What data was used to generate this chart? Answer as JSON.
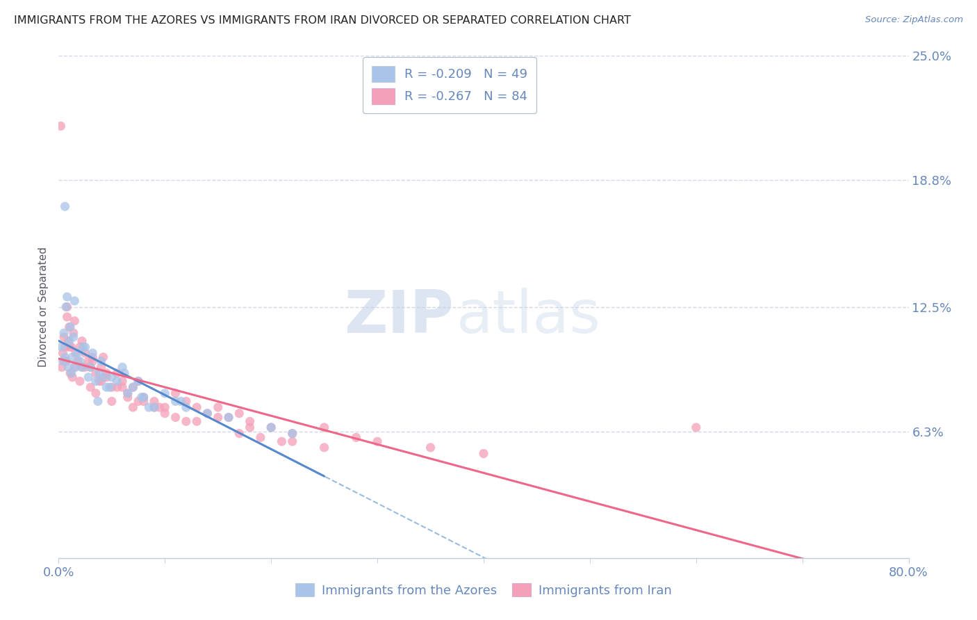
{
  "title": "IMMIGRANTS FROM THE AZORES VS IMMIGRANTS FROM IRAN DIVORCED OR SEPARATED CORRELATION CHART",
  "source": "Source: ZipAtlas.com",
  "xmin": 0.0,
  "xmax": 80.0,
  "ymin": 0.0,
  "ymax": 25.0,
  "yticks": [
    6.3,
    12.5,
    18.8,
    25.0
  ],
  "ytick_labels": [
    "6.3%",
    "12.5%",
    "18.8%",
    "25.0%"
  ],
  "legend_line1": "R = -0.209   N = 49",
  "legend_line2": "R = -0.267   N = 84",
  "azores_color": "#a8c4e8",
  "iran_color": "#f4a0b8",
  "trend_azores_color": "#5588cc",
  "trend_iran_color": "#ee6688",
  "dashed_color": "#99bbdd",
  "background_color": "#ffffff",
  "grid_color": "#d0d8e8",
  "axis_color": "#6688bb",
  "title_color": "#222222",
  "watermark_zip_color": "#c5d5e8",
  "watermark_atlas_color": "#c5d5e8",
  "azores_scatter_x": [
    0.3,
    0.4,
    0.5,
    0.6,
    0.7,
    0.8,
    0.9,
    1.0,
    1.1,
    1.2,
    1.3,
    1.5,
    1.6,
    1.8,
    2.0,
    2.2,
    2.5,
    2.8,
    3.0,
    3.2,
    3.5,
    3.8,
    4.0,
    4.5,
    5.0,
    5.5,
    6.0,
    6.5,
    7.0,
    7.5,
    8.0,
    9.0,
    10.0,
    11.0,
    12.0,
    14.0,
    16.0,
    20.0,
    22.0,
    4.2,
    4.8,
    2.3,
    1.4,
    0.6,
    3.7,
    6.2,
    7.8,
    8.5,
    11.5
  ],
  "azores_scatter_y": [
    10.5,
    9.8,
    11.2,
    10.0,
    12.5,
    13.0,
    9.5,
    10.8,
    11.5,
    9.2,
    10.0,
    12.8,
    9.5,
    10.2,
    9.8,
    9.5,
    10.5,
    9.0,
    9.5,
    10.2,
    8.8,
    9.2,
    9.8,
    8.5,
    9.0,
    8.8,
    9.5,
    8.2,
    8.5,
    8.8,
    8.0,
    7.5,
    8.2,
    7.8,
    7.5,
    7.2,
    7.0,
    6.5,
    6.2,
    9.0,
    8.5,
    10.5,
    11.0,
    17.5,
    7.8,
    9.2,
    8.0,
    7.5,
    7.8
  ],
  "iran_scatter_x": [
    0.2,
    0.3,
    0.4,
    0.5,
    0.6,
    0.7,
    0.8,
    0.9,
    1.0,
    1.1,
    1.2,
    1.3,
    1.5,
    1.6,
    1.8,
    2.0,
    2.2,
    2.5,
    2.8,
    3.0,
    3.2,
    3.5,
    3.8,
    4.0,
    4.5,
    5.0,
    5.5,
    6.0,
    6.5,
    7.0,
    7.5,
    8.0,
    9.0,
    10.0,
    11.0,
    12.0,
    13.0,
    14.0,
    15.0,
    16.0,
    17.0,
    18.0,
    20.0,
    22.0,
    25.0,
    28.0,
    30.0,
    35.0,
    40.0,
    60.0,
    0.5,
    1.0,
    1.5,
    2.0,
    2.5,
    3.0,
    3.5,
    4.0,
    5.0,
    6.0,
    7.0,
    8.0,
    10.0,
    12.0,
    15.0,
    18.0,
    22.0,
    25.0,
    4.5,
    5.5,
    6.5,
    7.5,
    9.0,
    11.0,
    13.0,
    17.0,
    19.0,
    21.0,
    4.2,
    3.2,
    2.2,
    1.4,
    0.8,
    9.5
  ],
  "iran_scatter_y": [
    21.5,
    9.5,
    10.2,
    11.0,
    10.5,
    9.8,
    12.0,
    10.8,
    11.5,
    9.2,
    10.5,
    9.0,
    11.8,
    10.2,
    9.8,
    10.5,
    9.5,
    10.2,
    9.8,
    9.5,
    10.0,
    9.2,
    8.8,
    9.5,
    9.0,
    8.5,
    9.2,
    8.8,
    8.2,
    8.5,
    8.8,
    8.0,
    7.8,
    7.5,
    8.2,
    7.8,
    7.5,
    7.2,
    7.5,
    7.0,
    7.2,
    6.8,
    6.5,
    6.2,
    6.5,
    6.0,
    5.8,
    5.5,
    5.2,
    6.5,
    9.8,
    10.5,
    9.5,
    8.8,
    9.5,
    8.5,
    8.2,
    8.8,
    7.8,
    8.5,
    7.5,
    7.8,
    7.2,
    6.8,
    7.0,
    6.5,
    5.8,
    5.5,
    9.2,
    8.5,
    8.0,
    7.8,
    7.5,
    7.0,
    6.8,
    6.2,
    6.0,
    5.8,
    10.0,
    9.8,
    10.8,
    11.2,
    12.5,
    7.5
  ]
}
